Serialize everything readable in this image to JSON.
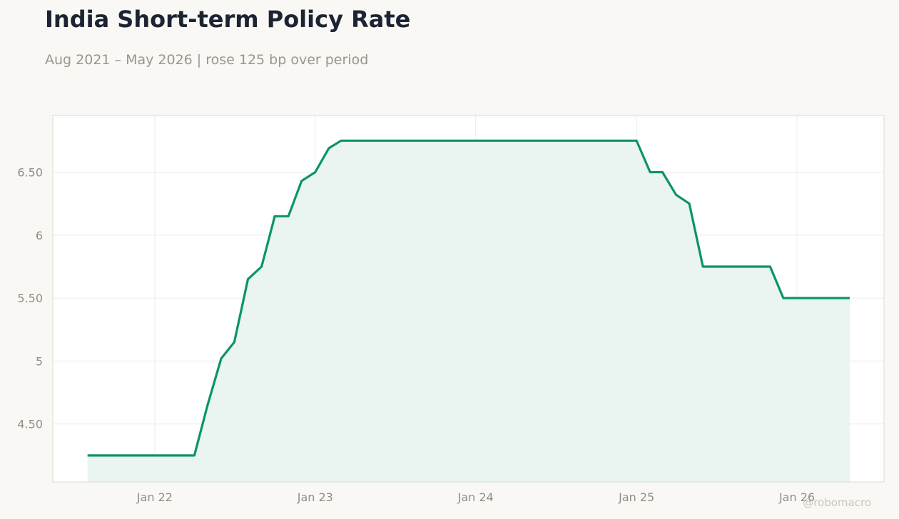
{
  "title": "India Short-term Policy Rate",
  "subtitle": "Aug 2021 – May 2026 | rose 125 bp over period",
  "watermark": "@robomacro",
  "colors": {
    "line": "#0b9468",
    "fill": "#eaf4f0",
    "plot_bg": "#ffffff",
    "page_bg": "#f9f8f5",
    "grid": "#ececec",
    "frame": "#dcdad4"
  },
  "chart_data": {
    "type": "area",
    "title": "India Short-term Policy Rate",
    "subtitle": "Aug 2021 – May 2026 | rose 125 bp over period",
    "xlabel": "",
    "ylabel": "",
    "xlim": [
      "2021-05-14",
      "2026-07-18"
    ],
    "ylim": [
      4.04,
      6.95
    ],
    "grid": true,
    "x_ticks": [
      {
        "date": "2022-01-01",
        "label": "Jan 22"
      },
      {
        "date": "2023-01-01",
        "label": "Jan 23"
      },
      {
        "date": "2024-01-01",
        "label": "Jan 24"
      },
      {
        "date": "2025-01-01",
        "label": "Jan 25"
      },
      {
        "date": "2026-01-01",
        "label": "Jan 26"
      }
    ],
    "y_ticks": [
      {
        "value": 4.5,
        "label": "4.50"
      },
      {
        "value": 5,
        "label": "5"
      },
      {
        "value": 5.5,
        "label": "5.50"
      },
      {
        "value": 6,
        "label": "6"
      },
      {
        "value": 6.5,
        "label": "6.50"
      }
    ],
    "series": [
      {
        "x": [
          "2021-08-01",
          "2021-09-01",
          "2021-10-01",
          "2021-11-01",
          "2021-12-01",
          "2022-01-01",
          "2022-02-01",
          "2022-03-01",
          "2022-04-01",
          "2022-05-01",
          "2022-06-01",
          "2022-07-01",
          "2022-08-01",
          "2022-09-01",
          "2022-10-01",
          "2022-11-01",
          "2022-12-01",
          "2023-01-01",
          "2023-02-01",
          "2023-03-01",
          "2023-04-01",
          "2023-05-01",
          "2023-06-01",
          "2023-07-01",
          "2023-08-01",
          "2023-09-01",
          "2023-10-01",
          "2023-11-01",
          "2023-12-01",
          "2024-01-01",
          "2024-02-01",
          "2024-03-01",
          "2024-04-01",
          "2024-05-01",
          "2024-06-01",
          "2024-07-01",
          "2024-08-01",
          "2024-09-01",
          "2024-10-01",
          "2024-11-01",
          "2024-12-01",
          "2025-01-01",
          "2025-02-01",
          "2025-03-01",
          "2025-04-01",
          "2025-05-01",
          "2025-06-01",
          "2025-07-01",
          "2025-08-01",
          "2025-09-01",
          "2025-10-01",
          "2025-11-01",
          "2025-12-01",
          "2026-01-01",
          "2026-02-01",
          "2026-03-01",
          "2026-04-01",
          "2026-05-01"
        ],
        "y": [
          4.25,
          4.25,
          4.25,
          4.25,
          4.25,
          4.25,
          4.25,
          4.25,
          4.25,
          4.65,
          5.02,
          5.15,
          5.65,
          5.75,
          6.15,
          6.15,
          6.43,
          6.5,
          6.69,
          6.75,
          6.75,
          6.75,
          6.75,
          6.75,
          6.75,
          6.75,
          6.75,
          6.75,
          6.75,
          6.75,
          6.75,
          6.75,
          6.75,
          6.75,
          6.75,
          6.75,
          6.75,
          6.75,
          6.75,
          6.75,
          6.75,
          6.75,
          6.5,
          6.5,
          6.32,
          6.25,
          5.75,
          5.75,
          5.75,
          5.75,
          5.75,
          5.75,
          5.5,
          5.5,
          5.5,
          5.5,
          5.5,
          5.5
        ]
      }
    ]
  }
}
